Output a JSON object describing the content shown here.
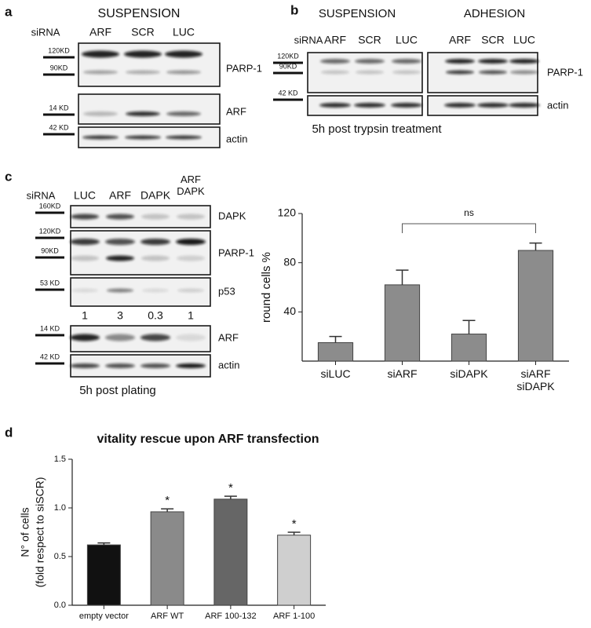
{
  "panels": {
    "a": {
      "letter": "a",
      "condition": "SUSPENSION",
      "sirna_label": "siRNA",
      "lanes": [
        "ARF",
        "SCR",
        "LUC"
      ],
      "markers": [
        "120KD",
        "90KD",
        "14 KD",
        "42 KD"
      ],
      "proteins": [
        "PARP-1",
        "ARF",
        "actin"
      ]
    },
    "b": {
      "letter": "b",
      "conditions": [
        "SUSPENSION",
        "ADHESION"
      ],
      "sirna_label": "siRNA",
      "lanes": [
        "ARF",
        "SCR",
        "LUC",
        "ARF",
        "SCR",
        "LUC"
      ],
      "markers": [
        "120KD",
        "90KD",
        "42 KD"
      ],
      "proteins": [
        "PARP-1",
        "actin"
      ],
      "caption": "5h post trypsin treatment"
    },
    "c": {
      "letter": "c",
      "sirna_label": "siRNA",
      "lanes": [
        "LUC",
        "ARF",
        "DAPK",
        "ARF DAPK"
      ],
      "markers": [
        "160KD",
        "120KD",
        "90KD",
        "53 KD",
        "14 KD",
        "42 KD"
      ],
      "proteins": [
        "DAPK",
        "PARP-1",
        "p53",
        "ARF",
        "actin"
      ],
      "p53_quantification": [
        1,
        3,
        0.3,
        1
      ],
      "caption": "5h post plating"
    },
    "d": {
      "letter": "d"
    }
  },
  "chart_data": [
    {
      "type": "bar",
      "ylabel": "round cells %",
      "categories": [
        "siLUC",
        "siARF",
        "siDAPK",
        "siARF siDAPK"
      ],
      "values": [
        15,
        62,
        22,
        90
      ],
      "errors": [
        5,
        12,
        11,
        6
      ],
      "color": "#8c8c8c",
      "ylim": [
        0,
        120
      ],
      "yticks": [
        40,
        80,
        120
      ],
      "annotation": "ns"
    },
    {
      "type": "bar",
      "title": "vitality rescue upon ARF transfection",
      "ylabel": [
        "N° of cells",
        "(fold respect to siSCR)"
      ],
      "categories": [
        "empty vector",
        "ARF WT",
        "ARF 100-132",
        "ARF 1-100"
      ],
      "values": [
        0.62,
        0.96,
        1.09,
        0.72
      ],
      "errors": [
        0.02,
        0.03,
        0.03,
        0.03
      ],
      "colors": [
        "#111111",
        "#8a8a8a",
        "#666666",
        "#cfcfcf"
      ],
      "significance": [
        null,
        "*",
        "*",
        "*"
      ],
      "ylim": [
        0,
        1.5
      ],
      "yticks": [
        {
          "value": 0,
          "label": "0.0"
        },
        0.5,
        {
          "value": 1,
          "label": "1.0"
        },
        1.5
      ]
    }
  ]
}
